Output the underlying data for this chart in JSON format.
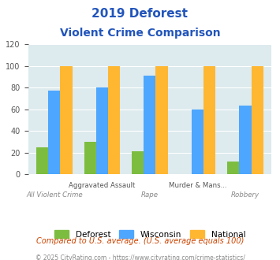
{
  "title_line1": "2019 Deforest",
  "title_line2": "Violent Crime Comparison",
  "categories": [
    "All Violent Crime",
    "Aggravated Assault",
    "Rape",
    "Murder & Mans...",
    "Robbery"
  ],
  "deforest": [
    25,
    30,
    21,
    0,
    12
  ],
  "wisconsin": [
    77,
    80,
    91,
    60,
    63
  ],
  "national": [
    100,
    100,
    100,
    100,
    100
  ],
  "color_deforest": "#7cbd40",
  "color_wisconsin": "#4da6ff",
  "color_national": "#ffb732",
  "color_bg_chart": "#ddeaee",
  "color_title": "#2255bb",
  "color_footer": "#888888",
  "color_note": "#cc4400",
  "ylim": [
    0,
    120
  ],
  "yticks": [
    0,
    20,
    40,
    60,
    80,
    100,
    120
  ],
  "note_text": "Compared to U.S. average. (U.S. average equals 100)",
  "footer_text": "© 2025 CityRating.com - https://www.cityrating.com/crime-statistics/",
  "bar_width": 0.25,
  "row1_indices": [
    1,
    3
  ],
  "row1_labels": [
    "Aggravated Assault",
    "Murder & Mans..."
  ],
  "row2_indices": [
    0,
    2,
    4
  ],
  "row2_labels": [
    "All Violent Crime",
    "Rape",
    "Robbery"
  ]
}
